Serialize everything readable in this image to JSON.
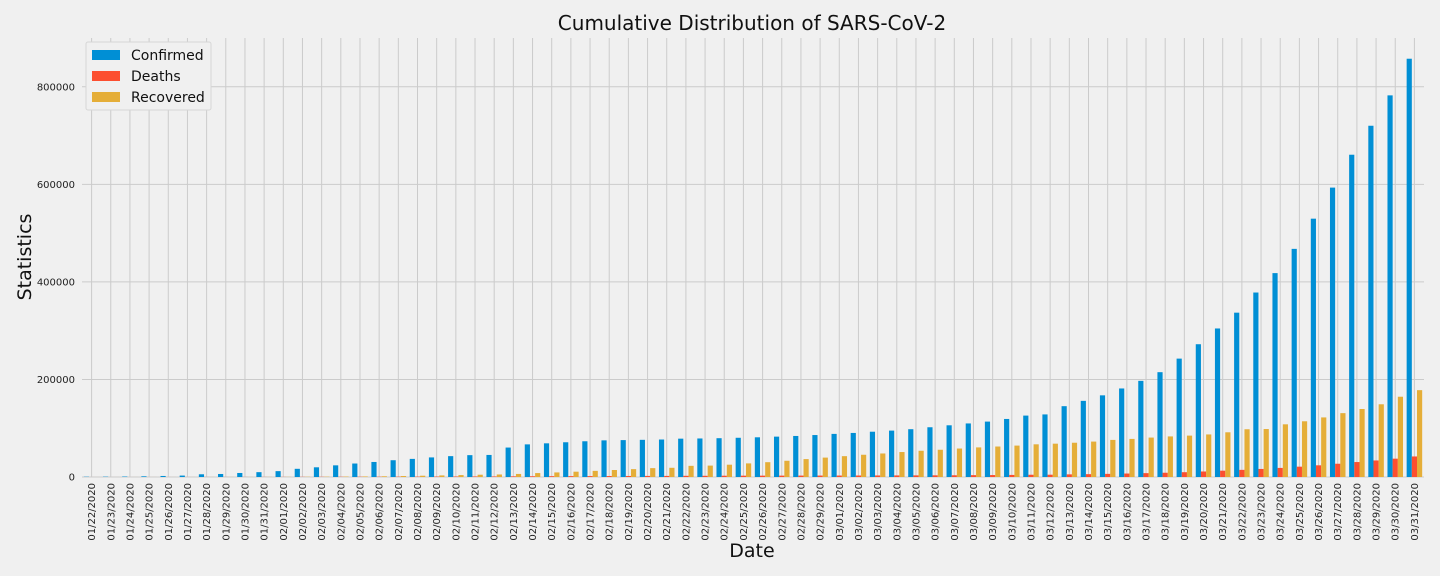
{
  "chart_data": {
    "type": "bar",
    "title": "Cumulative Distribution of SARS-CoV-2",
    "xlabel": "Date",
    "ylabel": "Statistics",
    "ylim": [
      0,
      900000
    ],
    "yticks": [
      0,
      200000,
      400000,
      600000,
      800000
    ],
    "grid": true,
    "legend": "top-left",
    "categories": [
      "01/22/2020",
      "01/23/2020",
      "01/24/2020",
      "01/25/2020",
      "01/26/2020",
      "01/27/2020",
      "01/28/2020",
      "01/29/2020",
      "01/30/2020",
      "01/31/2020",
      "02/01/2020",
      "02/02/2020",
      "02/03/2020",
      "02/04/2020",
      "02/05/2020",
      "02/06/2020",
      "02/07/2020",
      "02/08/2020",
      "02/09/2020",
      "02/10/2020",
      "02/11/2020",
      "02/12/2020",
      "02/13/2020",
      "02/14/2020",
      "02/15/2020",
      "02/16/2020",
      "02/17/2020",
      "02/18/2020",
      "02/19/2020",
      "02/20/2020",
      "02/21/2020",
      "02/22/2020",
      "02/23/2020",
      "02/24/2020",
      "02/25/2020",
      "02/26/2020",
      "02/27/2020",
      "02/28/2020",
      "02/29/2020",
      "03/01/2020",
      "03/02/2020",
      "03/03/2020",
      "03/04/2020",
      "03/05/2020",
      "03/06/2020",
      "03/07/2020",
      "03/08/2020",
      "03/09/2020",
      "03/10/2020",
      "03/11/2020",
      "03/12/2020",
      "03/13/2020",
      "03/14/2020",
      "03/15/2020",
      "03/16/2020",
      "03/17/2020",
      "03/18/2020",
      "03/19/2020",
      "03/20/2020",
      "03/21/2020",
      "03/22/2020",
      "03/23/2020",
      "03/24/2020",
      "03/25/2020",
      "03/26/2020",
      "03/27/2020",
      "03/28/2020",
      "03/29/2020",
      "03/30/2020",
      "03/31/2020"
    ],
    "series": [
      {
        "name": "Confirmed",
        "color": "#008fd5",
        "values": [
          555,
          653,
          941,
          1434,
          2118,
          2927,
          5578,
          6166,
          8234,
          9927,
          12038,
          16787,
          19881,
          23892,
          27636,
          30818,
          34392,
          37121,
          40151,
          42763,
          44803,
          45222,
          60370,
          66887,
          69032,
          71226,
          73260,
          75138,
          75641,
          76199,
          76843,
          78599,
          78985,
          79570,
          80415,
          81397,
          82756,
          84124,
          86013,
          88371,
          90309,
          92844,
          95124,
          98000,
          102000,
          106000,
          109800,
          113600,
          119000,
          125900,
          128300,
          145200,
          156100,
          167400,
          181500,
          197100,
          214900,
          242700,
          272200,
          304500,
          336900,
          378200,
          418000,
          467700,
          529600,
          593300,
          660700,
          720100,
          782400,
          857500
        ]
      },
      {
        "name": "Deaths",
        "color": "#fc4f30",
        "values": [
          17,
          18,
          26,
          42,
          56,
          82,
          131,
          133,
          171,
          213,
          259,
          362,
          426,
          492,
          564,
          634,
          719,
          806,
          906,
          1013,
          1113,
          1118,
          1371,
          1523,
          1666,
          1770,
          1868,
          2007,
          2122,
          2247,
          2251,
          2458,
          2469,
          2629,
          2708,
          2770,
          2814,
          2872,
          2941,
          2996,
          3085,
          3160,
          3254,
          3348,
          3460,
          3558,
          3802,
          3988,
          4262,
          4615,
          4720,
          5404,
          5819,
          6440,
          7126,
          7905,
          8733,
          9867,
          11299,
          12973,
          14651,
          16505,
          18625,
          21181,
          23970,
          27198,
          30652,
          33925,
          37582,
          42107
        ]
      },
      {
        "name": "Recovered",
        "color": "#e5ae38",
        "values": [
          28,
          30,
          36,
          39,
          52,
          61,
          107,
          126,
          143,
          222,
          284,
          472,
          623,
          852,
          1124,
          1487,
          2011,
          2616,
          3244,
          3946,
          4683,
          5150,
          6295,
          8058,
          9395,
          10865,
          12583,
          14352,
          16121,
          18177,
          18890,
          22886,
          23394,
          25227,
          27905,
          30384,
          33277,
          36711,
          39782,
          42716,
          45602,
          48229,
          51171,
          53797,
          55866,
          58359,
          60694,
          62494,
          64404,
          67003,
          68324,
          70251,
          72624,
          76034,
          78088,
          80840,
          83207,
          84854,
          87256,
          91676,
          97882,
          98351,
          108000,
          114218,
          122150,
          130915,
          139415,
          149082,
          164566,
          178034
        ]
      }
    ]
  }
}
